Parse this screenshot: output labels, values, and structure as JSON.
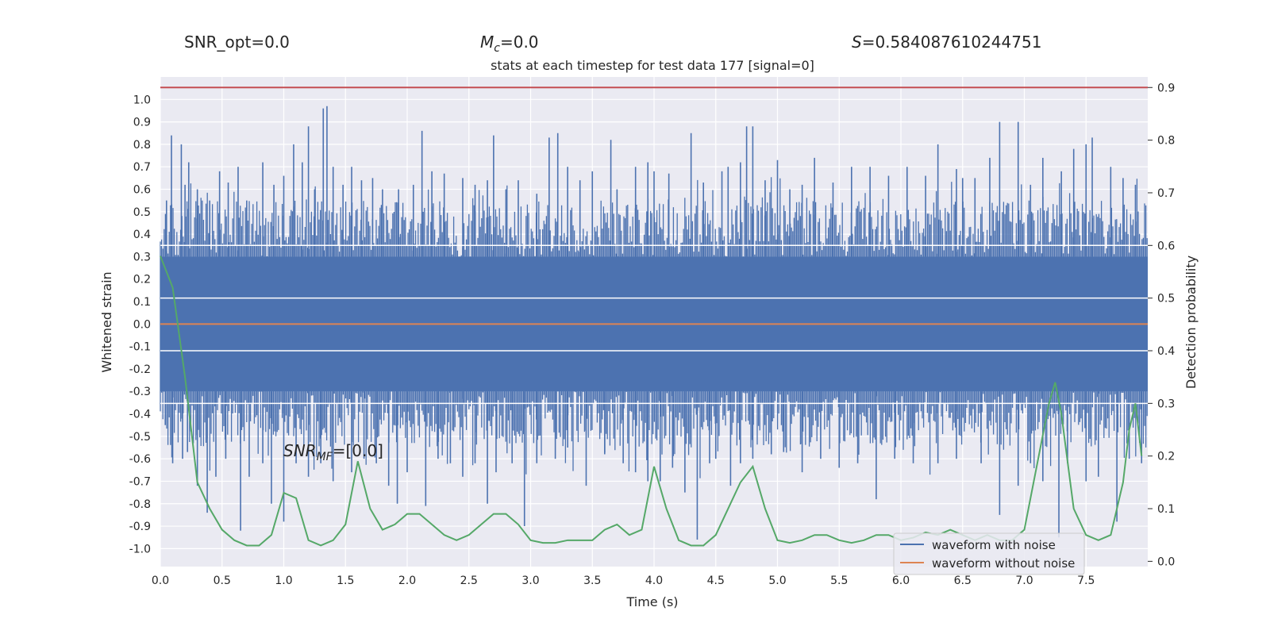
{
  "header": {
    "snr_opt": "SNR_opt=0.0",
    "mc_symbol": "M",
    "mc_sub": "c",
    "mc_value": "=0.0",
    "s_symbol": "S",
    "s_value": "=0.584087610244751"
  },
  "annotation": {
    "snr_symbol": "SNR",
    "snr_sub": "MF",
    "snr_value": "=[0.0]"
  },
  "chart_data": {
    "type": "line",
    "title": "stats at each timestep for test data 177 [signal=0]",
    "xlabel": "Time (s)",
    "ylabel": "Whitened strain",
    "y2label": "Detection probability",
    "xlim": [
      0.0,
      8.0
    ],
    "ylim": [
      -1.08,
      1.1
    ],
    "y2lim": [
      -0.01,
      0.92
    ],
    "xticks": [
      "0.0",
      "0.5",
      "1.0",
      "1.5",
      "2.0",
      "2.5",
      "3.0",
      "3.5",
      "4.0",
      "4.5",
      "5.0",
      "5.5",
      "6.0",
      "6.5",
      "7.0",
      "7.5"
    ],
    "yticks": [
      "1.0",
      "0.9",
      "0.8",
      "0.7",
      "0.6",
      "0.5",
      "0.4",
      "0.3",
      "0.2",
      "0.1",
      "0.0",
      "-0.1",
      "-0.2",
      "-0.3",
      "-0.4",
      "-0.5",
      "-0.6",
      "-0.7",
      "-0.8",
      "-0.9",
      "-1.0"
    ],
    "y2ticks": [
      "0.9",
      "0.8",
      "0.7",
      "0.6",
      "0.5",
      "0.4",
      "0.3",
      "0.2",
      "0.1",
      "0.0"
    ],
    "grid": true,
    "legend_position": "lower-right",
    "threshold": {
      "value": 0.9,
      "axis": "right",
      "color": "#c44e52"
    },
    "series": [
      {
        "name": "waveform with noise",
        "color": "#4c72b0",
        "noise": {
          "band_top": 0.3,
          "band_bottom": -0.3,
          "spikes_up": [
            [
              0.05,
              0.55
            ],
            [
              0.09,
              0.84
            ],
            [
              0.17,
              0.8
            ],
            [
              0.2,
              0.62
            ],
            [
              0.23,
              0.72
            ],
            [
              0.3,
              0.6
            ],
            [
              0.4,
              0.55
            ],
            [
              0.48,
              0.68
            ],
            [
              0.55,
              0.63
            ],
            [
              0.63,
              0.7
            ],
            [
              0.7,
              0.55
            ],
            [
              0.83,
              0.72
            ],
            [
              0.92,
              0.62
            ],
            [
              1.0,
              0.66
            ],
            [
              1.08,
              0.8
            ],
            [
              1.15,
              0.72
            ],
            [
              1.2,
              0.88
            ],
            [
              1.25,
              0.6
            ],
            [
              1.32,
              0.96
            ],
            [
              1.35,
              0.97
            ],
            [
              1.4,
              0.7
            ],
            [
              1.48,
              0.62
            ],
            [
              1.55,
              0.7
            ],
            [
              1.63,
              0.64
            ],
            [
              1.72,
              0.65
            ],
            [
              1.8,
              0.6
            ],
            [
              1.93,
              0.6
            ],
            [
              2.05,
              0.62
            ],
            [
              2.12,
              0.86
            ],
            [
              2.2,
              0.68
            ],
            [
              2.3,
              0.67
            ],
            [
              2.45,
              0.65
            ],
            [
              2.55,
              0.62
            ],
            [
              2.65,
              0.64
            ],
            [
              2.7,
              0.84
            ],
            [
              2.8,
              0.6
            ],
            [
              2.9,
              0.64
            ],
            [
              3.05,
              0.58
            ],
            [
              3.15,
              0.83
            ],
            [
              3.22,
              0.85
            ],
            [
              3.3,
              0.7
            ],
            [
              3.4,
              0.64
            ],
            [
              3.5,
              0.68
            ],
            [
              3.65,
              0.82
            ],
            [
              3.7,
              0.6
            ],
            [
              3.85,
              0.7
            ],
            [
              3.95,
              0.72
            ],
            [
              4.0,
              0.68
            ],
            [
              4.12,
              0.67
            ],
            [
              4.3,
              0.85
            ],
            [
              4.4,
              0.63
            ],
            [
              4.55,
              0.68
            ],
            [
              4.6,
              0.7
            ],
            [
              4.7,
              0.72
            ],
            [
              4.75,
              0.88
            ],
            [
              4.8,
              0.88
            ],
            [
              4.9,
              0.64
            ],
            [
              5.0,
              0.73
            ],
            [
              5.1,
              0.6
            ],
            [
              5.2,
              0.62
            ],
            [
              5.3,
              0.74
            ],
            [
              5.45,
              0.63
            ],
            [
              5.6,
              0.7
            ],
            [
              5.75,
              0.7
            ],
            [
              5.9,
              0.66
            ],
            [
              6.05,
              0.7
            ],
            [
              6.2,
              0.66
            ],
            [
              6.3,
              0.8
            ],
            [
              6.45,
              0.69
            ],
            [
              6.5,
              0.65
            ],
            [
              6.6,
              0.65
            ],
            [
              6.72,
              0.74
            ],
            [
              6.8,
              0.9
            ],
            [
              6.95,
              0.9
            ],
            [
              7.05,
              0.62
            ],
            [
              7.15,
              0.74
            ],
            [
              7.3,
              0.68
            ],
            [
              7.4,
              0.78
            ],
            [
              7.5,
              0.8
            ],
            [
              7.55,
              0.83
            ],
            [
              7.7,
              0.7
            ],
            [
              7.8,
              0.65
            ],
            [
              7.9,
              0.62
            ]
          ],
          "spikes_down": [
            [
              0.04,
              -0.45
            ],
            [
              0.1,
              -0.62
            ],
            [
              0.18,
              -0.6
            ],
            [
              0.22,
              -0.57
            ],
            [
              0.3,
              -0.72
            ],
            [
              0.38,
              -0.84
            ],
            [
              0.45,
              -0.68
            ],
            [
              0.53,
              -0.6
            ],
            [
              0.65,
              -0.92
            ],
            [
              0.72,
              -0.68
            ],
            [
              0.83,
              -0.62
            ],
            [
              0.9,
              -0.8
            ],
            [
              1.0,
              -0.88
            ],
            [
              1.1,
              -0.62
            ],
            [
              1.2,
              -0.68
            ],
            [
              1.3,
              -0.62
            ],
            [
              1.4,
              -0.7
            ],
            [
              1.55,
              -0.66
            ],
            [
              1.65,
              -0.6
            ],
            [
              1.75,
              -0.62
            ],
            [
              1.85,
              -0.72
            ],
            [
              1.92,
              -0.8
            ],
            [
              2.0,
              -0.66
            ],
            [
              2.15,
              -0.81
            ],
            [
              2.25,
              -0.6
            ],
            [
              2.35,
              -0.62
            ],
            [
              2.45,
              -0.68
            ],
            [
              2.55,
              -0.62
            ],
            [
              2.65,
              -0.8
            ],
            [
              2.72,
              -0.66
            ],
            [
              2.85,
              -0.62
            ],
            [
              2.95,
              -0.9
            ],
            [
              3.05,
              -0.62
            ],
            [
              3.2,
              -0.6
            ],
            [
              3.3,
              -0.55
            ],
            [
              3.45,
              -0.72
            ],
            [
              3.6,
              -0.58
            ],
            [
              3.75,
              -0.62
            ],
            [
              3.85,
              -0.66
            ],
            [
              3.95,
              -0.7
            ],
            [
              4.05,
              -0.7
            ],
            [
              4.15,
              -0.64
            ],
            [
              4.25,
              -0.75
            ],
            [
              4.35,
              -0.96
            ],
            [
              4.45,
              -0.62
            ],
            [
              4.5,
              -0.6
            ],
            [
              4.62,
              -0.72
            ],
            [
              4.7,
              -0.62
            ],
            [
              4.8,
              -0.6
            ],
            [
              4.95,
              -0.58
            ],
            [
              5.05,
              -0.57
            ],
            [
              5.2,
              -0.66
            ],
            [
              5.35,
              -0.6
            ],
            [
              5.5,
              -0.64
            ],
            [
              5.65,
              -0.62
            ],
            [
              5.8,
              -0.78
            ],
            [
              5.95,
              -0.6
            ],
            [
              6.1,
              -0.62
            ],
            [
              6.3,
              -0.62
            ],
            [
              6.45,
              -0.6
            ],
            [
              6.65,
              -0.62
            ],
            [
              6.8,
              -0.85
            ],
            [
              6.95,
              -0.72
            ],
            [
              7.05,
              -0.62
            ],
            [
              7.15,
              -0.7
            ],
            [
              7.28,
              -0.95
            ],
            [
              7.35,
              -0.62
            ],
            [
              7.5,
              -0.7
            ],
            [
              7.6,
              -0.68
            ],
            [
              7.75,
              -0.88
            ],
            [
              7.85,
              -0.6
            ],
            [
              7.95,
              -0.62
            ]
          ]
        }
      },
      {
        "name": "waveform without noise",
        "color": "#dd8452",
        "x": [
          0.0,
          8.0
        ],
        "y": [
          0.0,
          0.0
        ]
      },
      {
        "name": "Detection probability",
        "axis": "right",
        "color": "#55a868",
        "x": [
          0.0,
          0.1,
          0.2,
          0.3,
          0.4,
          0.5,
          0.6,
          0.7,
          0.8,
          0.9,
          1.0,
          1.1,
          1.2,
          1.3,
          1.4,
          1.5,
          1.6,
          1.7,
          1.8,
          1.9,
          2.0,
          2.1,
          2.2,
          2.3,
          2.4,
          2.5,
          2.6,
          2.7,
          2.8,
          2.9,
          3.0,
          3.1,
          3.2,
          3.3,
          3.4,
          3.5,
          3.6,
          3.7,
          3.8,
          3.9,
          4.0,
          4.1,
          4.2,
          4.3,
          4.4,
          4.5,
          4.6,
          4.7,
          4.8,
          4.9,
          5.0,
          5.1,
          5.2,
          5.3,
          5.4,
          5.5,
          5.6,
          5.7,
          5.8,
          5.9,
          6.0,
          6.1,
          6.2,
          6.3,
          6.4,
          6.5,
          6.6,
          6.7,
          6.8,
          6.9,
          7.0,
          7.1,
          7.2,
          7.25,
          7.3,
          7.4,
          7.5,
          7.6,
          7.7,
          7.8,
          7.85,
          7.9,
          7.95
        ],
        "y": [
          0.58,
          0.52,
          0.35,
          0.15,
          0.1,
          0.06,
          0.04,
          0.03,
          0.03,
          0.05,
          0.13,
          0.12,
          0.04,
          0.03,
          0.04,
          0.07,
          0.19,
          0.1,
          0.06,
          0.07,
          0.09,
          0.09,
          0.07,
          0.05,
          0.04,
          0.05,
          0.07,
          0.09,
          0.09,
          0.07,
          0.04,
          0.035,
          0.035,
          0.04,
          0.04,
          0.04,
          0.06,
          0.07,
          0.05,
          0.06,
          0.18,
          0.1,
          0.04,
          0.03,
          0.03,
          0.05,
          0.1,
          0.15,
          0.18,
          0.1,
          0.04,
          0.035,
          0.04,
          0.05,
          0.05,
          0.04,
          0.035,
          0.04,
          0.05,
          0.05,
          0.04,
          0.045,
          0.055,
          0.05,
          0.06,
          0.05,
          0.04,
          0.05,
          0.04,
          0.04,
          0.06,
          0.18,
          0.3,
          0.34,
          0.28,
          0.1,
          0.05,
          0.04,
          0.05,
          0.15,
          0.25,
          0.3,
          0.2
        ]
      }
    ]
  }
}
